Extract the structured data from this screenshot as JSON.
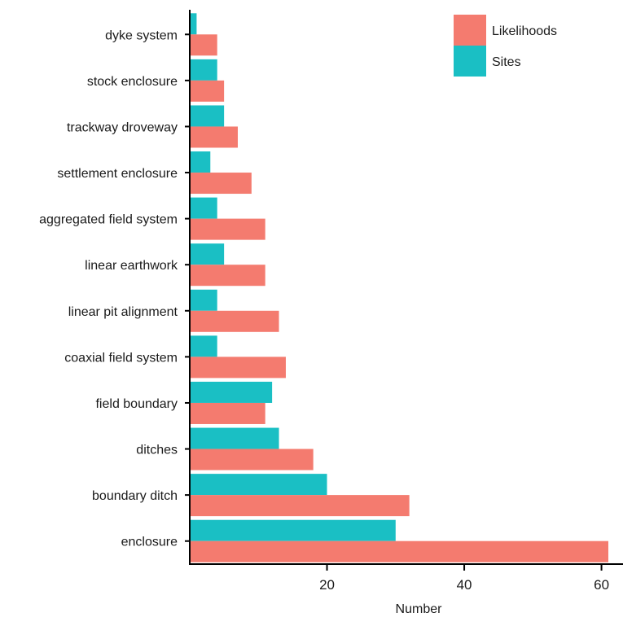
{
  "chart_data": {
    "type": "bar",
    "orientation": "horizontal",
    "categories": [
      "dyke system",
      "stock enclosure",
      "trackway droveway",
      "settlement enclosure",
      "aggregated field system",
      "linear earthwork",
      "linear pit alignment",
      "coaxial field system",
      "field boundary",
      "ditches",
      "boundary ditch",
      "enclosure"
    ],
    "series": [
      {
        "name": "Sites",
        "color": "#1ABFC4",
        "values": [
          1,
          4,
          5,
          3,
          4,
          5,
          4,
          4,
          12,
          13,
          20,
          30
        ]
      },
      {
        "name": "Likelihoods",
        "color": "#F47B6F",
        "values": [
          4,
          5,
          7,
          9,
          11,
          11,
          13,
          14,
          11,
          18,
          32,
          61
        ]
      }
    ],
    "legend_order": [
      "Likelihoods",
      "Sites"
    ],
    "legend_position": "top-right",
    "xlabel": "Number",
    "ylabel": "",
    "xlim": [
      0,
      63
    ],
    "xticks": [
      20,
      40,
      60
    ],
    "grid": false
  }
}
